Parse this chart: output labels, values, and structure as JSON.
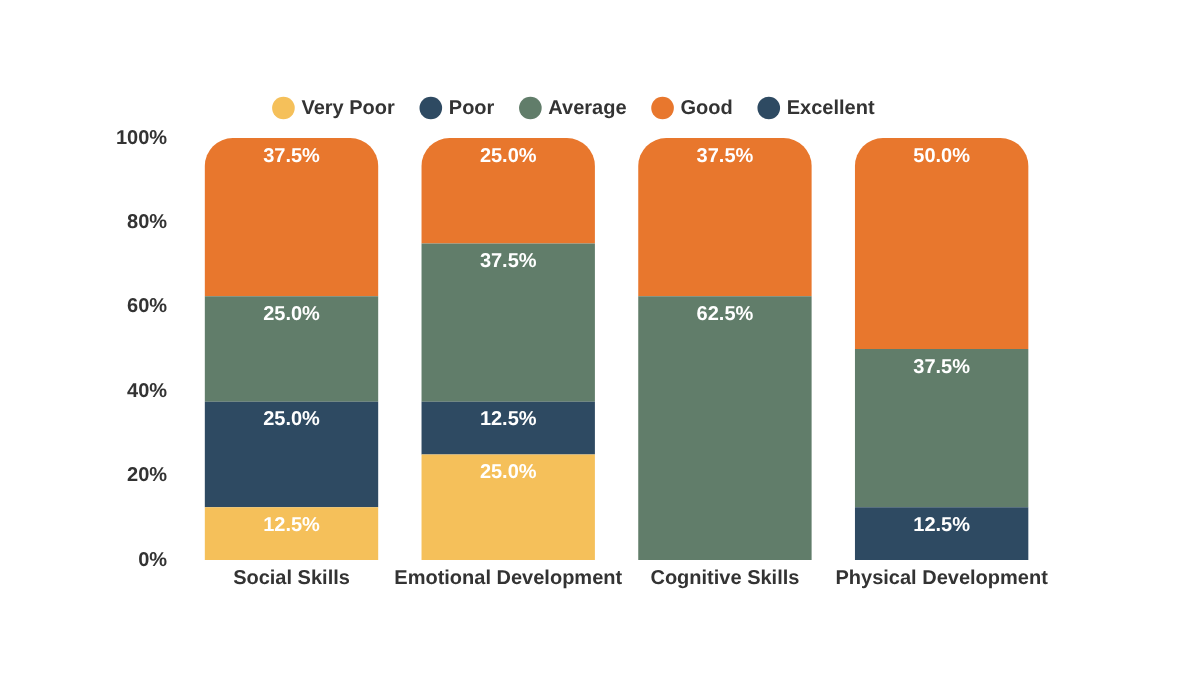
{
  "chart_data": {
    "type": "bar",
    "stacked": true,
    "legend": "top",
    "categories": [
      "Social Skills",
      "Emotional Development",
      "Cognitive Skills",
      "Physical Development"
    ],
    "series": [
      {
        "name": "Very Poor",
        "color": "#f5c05a",
        "values": [
          12.5,
          25.0,
          null,
          null
        ],
        "value_labels": [
          "12.5%",
          "25.0%",
          null,
          null
        ]
      },
      {
        "name": "Poor",
        "color": "#2e4a62",
        "values": [
          25.0,
          12.5,
          null,
          12.5
        ],
        "value_labels": [
          "25.0%",
          "12.5%",
          null,
          "12.5%"
        ]
      },
      {
        "name": "Average",
        "color": "#617d6a",
        "values": [
          25.0,
          37.5,
          62.5,
          37.5
        ],
        "value_labels": [
          "25.0%",
          "37.5%",
          "62.5%",
          "37.5%"
        ]
      },
      {
        "name": "Good",
        "color": "#e8772d",
        "values": [
          37.5,
          25.0,
          37.5,
          50.0
        ],
        "value_labels": [
          "37.5%",
          "25.0%",
          "37.5%",
          "50.0%"
        ]
      },
      {
        "name": "Excellent",
        "color": "#2e4a62",
        "values": [
          null,
          null,
          null,
          null
        ]
      }
    ],
    "ylim": [
      0,
      100
    ],
    "yticks": [
      {
        "value": 0,
        "label": "0%"
      },
      {
        "value": 20,
        "label": "20%"
      },
      {
        "value": 40,
        "label": "40%"
      },
      {
        "value": 60,
        "label": "60%"
      },
      {
        "value": 80,
        "label": "80%"
      },
      {
        "value": 100,
        "label": "100%"
      }
    ],
    "grid": false
  }
}
